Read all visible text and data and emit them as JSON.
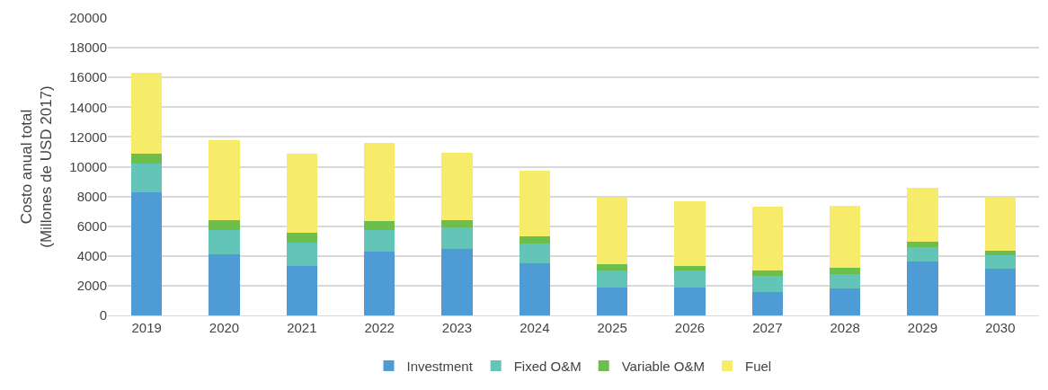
{
  "chart_data": {
    "type": "bar",
    "stacked": true,
    "ylabel": "Costo anual total\n(Millones de USD 2017)",
    "categories": [
      "2019",
      "2020",
      "2021",
      "2022",
      "2023",
      "2024",
      "2025",
      "2026",
      "2027",
      "2028",
      "2029",
      "2030"
    ],
    "series": [
      {
        "name": "Investment",
        "color": "#4e9bd6",
        "values": [
          8300,
          4100,
          3350,
          4300,
          4500,
          3500,
          1850,
          1850,
          1550,
          1800,
          3650,
          3150
        ]
      },
      {
        "name": "Fixed O&M",
        "color": "#63c5b8",
        "values": [
          1900,
          1650,
          1550,
          1450,
          1400,
          1350,
          1200,
          1150,
          1100,
          1000,
          950,
          900
        ]
      },
      {
        "name": "Variable O&M",
        "color": "#6dbf4b",
        "values": [
          650,
          650,
          650,
          600,
          500,
          450,
          400,
          350,
          350,
          400,
          350,
          300
        ]
      },
      {
        "name": "Fuel",
        "color": "#f7ec6a",
        "values": [
          5450,
          5400,
          5300,
          5250,
          4550,
          4450,
          4450,
          4350,
          4300,
          4150,
          3650,
          3600
        ]
      }
    ],
    "ylim": [
      0,
      20000
    ],
    "yticks": [
      0,
      2000,
      4000,
      6000,
      8000,
      10000,
      12000,
      14000,
      16000,
      18000,
      20000
    ],
    "grid": "y",
    "legend": "bottom"
  }
}
